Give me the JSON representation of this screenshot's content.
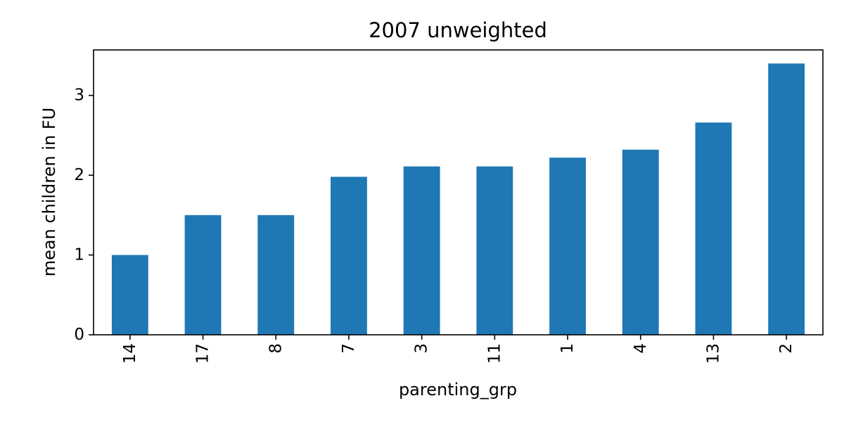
{
  "chart_data": {
    "type": "bar",
    "title": "2007 unweighted",
    "xlabel": "parenting_grp",
    "ylabel": "mean children in FU",
    "categories": [
      "14",
      "17",
      "8",
      "7",
      "3",
      "11",
      "1",
      "4",
      "13",
      "2"
    ],
    "values": [
      1.0,
      1.5,
      1.5,
      1.98,
      2.11,
      2.11,
      2.22,
      2.32,
      2.66,
      3.4
    ],
    "yticks": [
      0,
      1,
      2,
      3
    ],
    "ylim": [
      0,
      3.57
    ],
    "grid": false,
    "legend": "none",
    "bar_color": "#1f77b4"
  }
}
